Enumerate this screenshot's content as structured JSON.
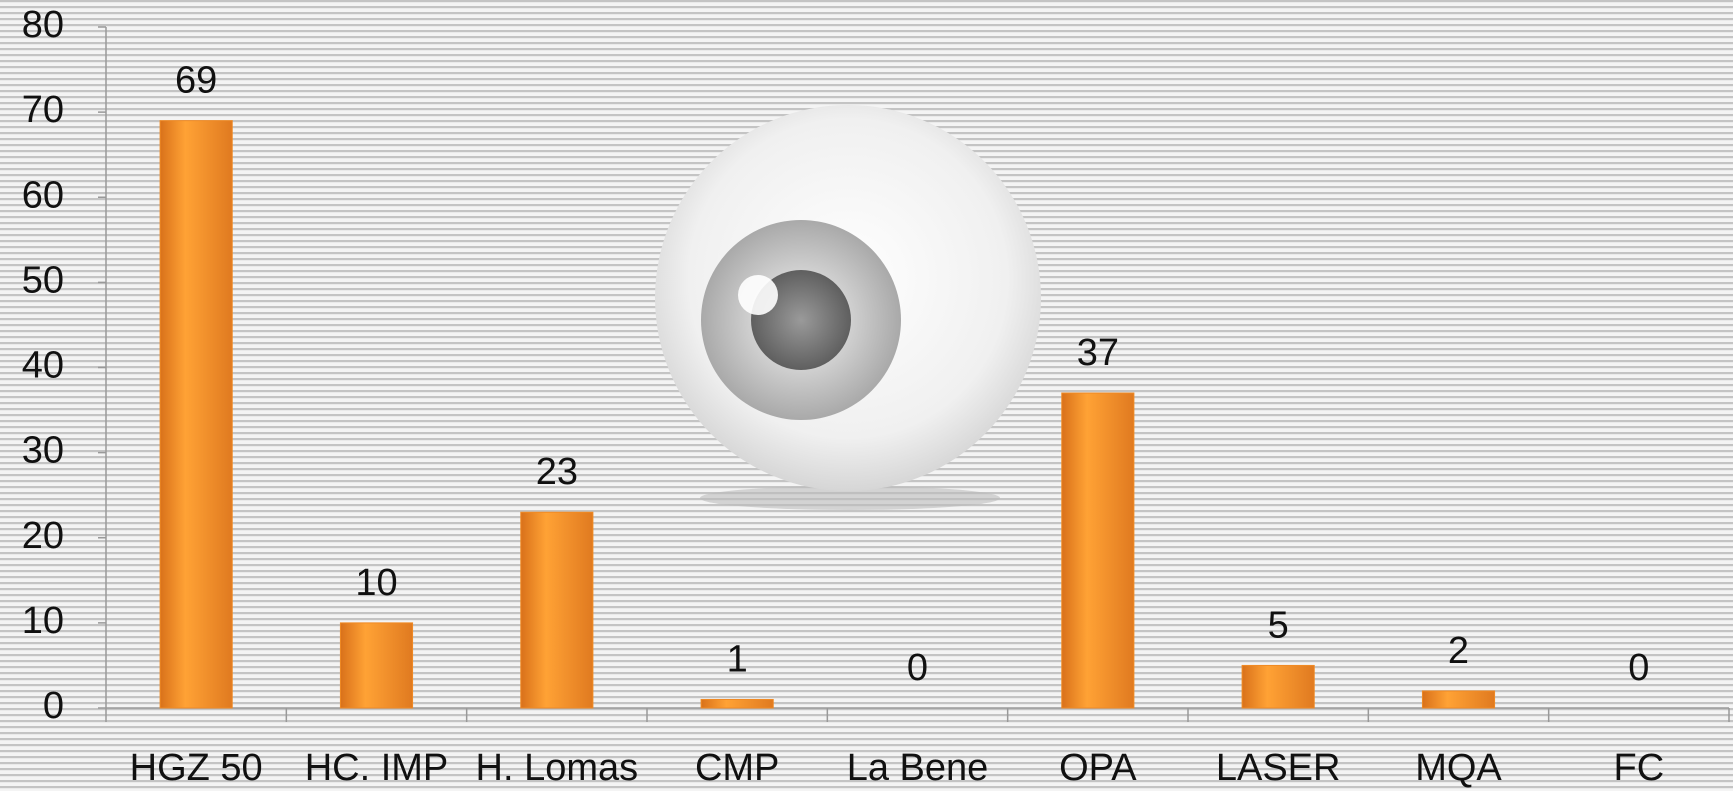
{
  "chart_data": {
    "type": "bar",
    "categories": [
      "HGZ 50",
      "HC. IMP",
      "H. Lomas",
      "CMP",
      "La Bene",
      "OPA",
      "LASER",
      "MQA",
      "FC"
    ],
    "values": [
      69,
      10,
      23,
      1,
      0,
      37,
      5,
      2,
      0
    ],
    "color": "#f08a24",
    "ylim": [
      0,
      80
    ],
    "yticks": [
      0,
      10,
      20,
      30,
      40,
      50,
      60,
      70,
      80
    ]
  }
}
